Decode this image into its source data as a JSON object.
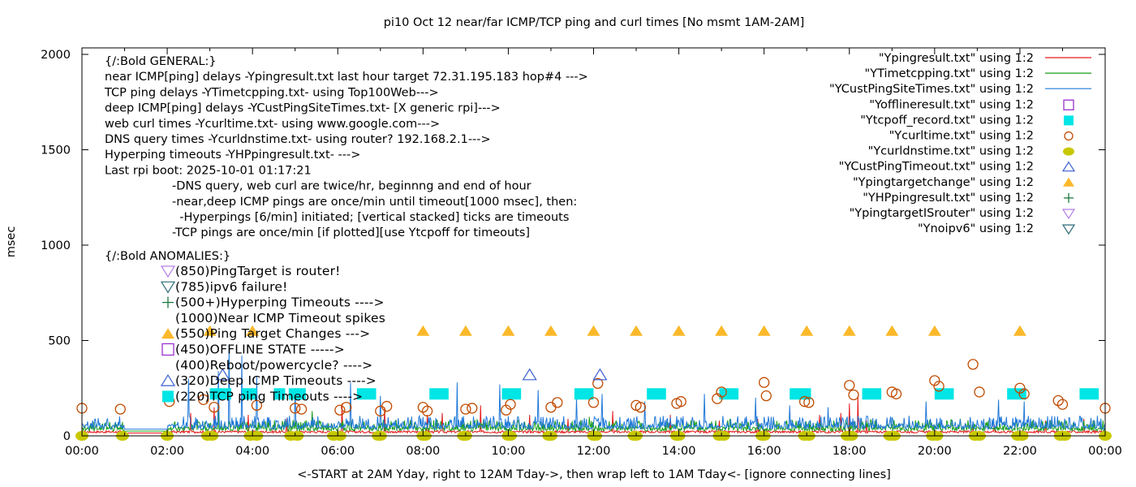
{
  "chart_data": {
    "type": "line",
    "title": "pi10 Oct 12  near/far ICMP/TCP ping and curl times [No msmt 1AM-2AM]",
    "xlabel": "<-START at 2AM Yday, right to 12AM Tday->, then wrap left to 1AM Tday<- [ignore connecting lines]",
    "ylabel": "msec",
    "xlim": [
      0,
      24
    ],
    "ylim": [
      0,
      2000
    ],
    "x_ticks": [
      "00:00",
      "02:00",
      "04:00",
      "06:00",
      "08:00",
      "10:00",
      "12:00",
      "14:00",
      "16:00",
      "18:00",
      "20:00",
      "22:00",
      "00:00"
    ],
    "y_ticks": [
      "0",
      "500",
      "1000",
      "1500",
      "2000"
    ],
    "legend_position": "top-right",
    "series": [
      {
        "name": "\"Ypingresult.txt\" using 1:2",
        "style": "line",
        "color": "#e41a1c",
        "baseline": 15,
        "spike_hours": [
          2.55,
          3.1,
          3.9,
          4.8,
          6.1,
          7.1,
          8.1,
          8.45,
          9.35,
          10.5,
          11.4,
          12.45,
          13.8,
          14.95,
          15.85,
          17.3,
          17.8,
          18.0,
          18.2,
          18.4,
          20.9,
          21.4,
          22.6,
          23.5
        ],
        "spike_values": [
          120,
          150,
          110,
          90,
          170,
          150,
          110,
          120,
          160,
          110,
          90,
          130,
          110,
          80,
          90,
          110,
          120,
          170,
          210,
          80,
          70,
          60,
          80,
          90
        ]
      },
      {
        "name": "\"YTimetcpping.txt\" using 1:2",
        "style": "line",
        "color": "#1a9e1a",
        "baseline": 25,
        "spike_hours": [
          3.2,
          5.4,
          8.3,
          11.9,
          15.2,
          18.6,
          20.6
        ],
        "spike_values": [
          170,
          130,
          90,
          100,
          90,
          80,
          90
        ]
      },
      {
        "name": "\"YCustPingSiteTimes.txt\" using 1:2",
        "style": "line",
        "color": "#1f78d8",
        "baseline": 35,
        "spike_hours": [
          2.5,
          3.2,
          3.45,
          3.75,
          4.1,
          5.0,
          6.3,
          7.0,
          8.8,
          9.8,
          10.7,
          11.6,
          12.2,
          13.2,
          14.6,
          15.8,
          16.6,
          17.5,
          19.8,
          21.5,
          22.1
        ],
        "spike_values": [
          300,
          340,
          480,
          420,
          310,
          250,
          280,
          210,
          280,
          270,
          240,
          200,
          220,
          180,
          220,
          200,
          160,
          150,
          180,
          190,
          180
        ]
      }
    ],
    "markers": [
      {
        "name": "\"Yofflineresult.txt\" using 1:2",
        "shape": "open-square",
        "color": "#9b30d0",
        "points": []
      },
      {
        "name": "\"Ytcpoff_record.txt\" using 1:2",
        "shape": "filled-square",
        "color": "#00e5e5",
        "value": 220,
        "ranges": [
          [
            3.0,
            3.5
          ],
          [
            3.75,
            4.1
          ],
          [
            4.5,
            4.75
          ],
          [
            4.85,
            5.25
          ],
          [
            6.45,
            6.9
          ],
          [
            8.15,
            8.6
          ],
          [
            9.85,
            10.3
          ],
          [
            11.55,
            12.0
          ],
          [
            13.25,
            13.7
          ],
          [
            14.95,
            15.4
          ],
          [
            16.6,
            17.1
          ],
          [
            18.3,
            18.75
          ],
          [
            20.0,
            20.45
          ],
          [
            21.7,
            22.15
          ],
          [
            23.4,
            23.85
          ]
        ]
      },
      {
        "name": "\"Ycurltime.txt\" using 1:2",
        "shape": "open-circle",
        "color": "#c04a00",
        "points": [
          [
            0.0,
            145
          ],
          [
            0.9,
            140
          ],
          [
            2.05,
            180
          ],
          [
            2.85,
            190
          ],
          [
            3.1,
            150
          ],
          [
            4.1,
            160
          ],
          [
            5.0,
            145
          ],
          [
            5.15,
            140
          ],
          [
            6.05,
            135
          ],
          [
            6.2,
            150
          ],
          [
            7.0,
            130
          ],
          [
            7.15,
            155
          ],
          [
            8.0,
            150
          ],
          [
            8.1,
            130
          ],
          [
            9.0,
            140
          ],
          [
            9.15,
            145
          ],
          [
            9.95,
            135
          ],
          [
            10.05,
            165
          ],
          [
            11.0,
            150
          ],
          [
            11.15,
            175
          ],
          [
            12.0,
            175
          ],
          [
            12.1,
            275
          ],
          [
            13.0,
            160
          ],
          [
            13.1,
            150
          ],
          [
            13.95,
            170
          ],
          [
            14.05,
            180
          ],
          [
            14.9,
            195
          ],
          [
            15.0,
            230
          ],
          [
            16.0,
            280
          ],
          [
            16.05,
            210
          ],
          [
            16.95,
            180
          ],
          [
            17.05,
            175
          ],
          [
            18.0,
            265
          ],
          [
            18.1,
            215
          ],
          [
            19.0,
            230
          ],
          [
            19.1,
            220
          ],
          [
            20.0,
            290
          ],
          [
            20.1,
            260
          ],
          [
            20.9,
            375
          ],
          [
            21.05,
            230
          ],
          [
            22.0,
            250
          ],
          [
            22.1,
            220
          ],
          [
            22.9,
            185
          ],
          [
            23.0,
            165
          ],
          [
            24.0,
            145
          ]
        ]
      },
      {
        "name": "\"Ycurldnstime.txt\" using 1:2",
        "shape": "filled-circle",
        "color": "#c8c800",
        "value": 0,
        "points_hours": [
          0.0,
          0.95,
          2.0,
          2.95,
          3.05,
          3.95,
          4.1,
          4.9,
          5.05,
          5.9,
          6.05,
          6.95,
          7.0,
          8.0,
          8.05,
          8.95,
          9.0,
          10.0,
          10.05,
          10.95,
          11.0,
          12.0,
          12.05,
          12.95,
          13.0,
          13.95,
          14.0,
          14.95,
          15.05,
          15.95,
          16.0,
          16.95,
          17.05,
          17.95,
          18.05,
          18.95,
          19.05,
          19.95,
          20.05,
          20.95,
          21.05,
          21.95,
          22.05,
          22.95,
          23.05,
          24.0
        ]
      },
      {
        "name": "\"YCustPingTimeout.txt\" using 1:2",
        "shape": "open-triangle",
        "color": "#3a5fd0",
        "value": 320,
        "points_hours": [
          3.3,
          10.5,
          12.15
        ]
      },
      {
        "name": "\"Ypingtargetchange\" using 1:2",
        "shape": "filled-triangle",
        "color": "#fbb829",
        "value": 550,
        "points_hours": [
          3.0,
          4.0,
          8.0,
          9.0,
          10.0,
          11.0,
          12.0,
          13.0,
          14.0,
          15.0,
          16.0,
          17.0,
          18.0,
          19.0,
          20.0,
          22.0
        ]
      },
      {
        "name": "\"YHPpingresult.txt\" using 1:2",
        "shape": "plus",
        "color": "#1a7a40",
        "points": []
      },
      {
        "name": "\"YpingtargetISrouter\" using 1:2",
        "shape": "open-inverted-triangle",
        "color": "#b57ee8",
        "points": []
      },
      {
        "name": "\"Ynoipv6\" using 1:2",
        "shape": "open-inverted-triangle",
        "color": "#2e6b78",
        "points": []
      }
    ],
    "annotations": {
      "general": [
        "{/:Bold GENERAL:}",
        "near ICMP[ping] delays -Ypingresult.txt last hour target 72.31.195.183 hop#4 --->",
        "TCP ping delays -YTimetcpping.txt- using Top100Web--->",
        "deep ICMP[ping] delays -YCustPingSiteTimes.txt- [X generic rpi]--->",
        "web curl times -Ycurltime.txt- using www.google.com--->",
        "DNS query times -Ycurldnstime.txt- using router? 192.168.2.1--->",
        "Hyperping timeouts -YHPpingresult.txt- --->",
        "Last rpi boot: 2025-10-01 01:17:21"
      ],
      "notes": [
        "-DNS query, web curl are twice/hr, beginnng and end of hour",
        "-near,deep ICMP pings are once/min until timeout[1000 msec], then:",
        "  -Hyperpings [6/min] initiated; [vertical stacked] ticks are timeouts",
        "-TCP pings are once/min [if plotted][use Ytcpoff for timeouts]"
      ],
      "anomalies_header": "{/:Bold ANOMALIES:}",
      "anomalies": [
        {
          "text": "(850)PingTarget is router!",
          "shape": "open-inverted-triangle",
          "color": "#b57ee8"
        },
        {
          "text": "(785)ipv6 failure!",
          "shape": "open-inverted-triangle",
          "color": "#2e6b78"
        },
        {
          "text": "(500+)Hyperping Timeouts ---->",
          "shape": "plus",
          "color": "#1a7a40"
        },
        {
          "text": "(1000)Near ICMP Timeout spikes",
          "shape": "none",
          "color": "#000000"
        },
        {
          "text": "(550)Ping Target Changes --->",
          "shape": "filled-triangle",
          "color": "#fbb829"
        },
        {
          "text": "(450)OFFLINE STATE ----->",
          "shape": "open-square",
          "color": "#9b30d0"
        },
        {
          "text": "(400)Reboot/powercycle? ---->",
          "shape": "none",
          "color": "#000000"
        },
        {
          "text": "(320)Deep ICMP Timeouts ---->",
          "shape": "open-triangle",
          "color": "#3a5fd0"
        },
        {
          "text": "(220)TCP ping Timeouts ---->",
          "shape": "filled-square",
          "color": "#00e5e5"
        }
      ]
    }
  }
}
